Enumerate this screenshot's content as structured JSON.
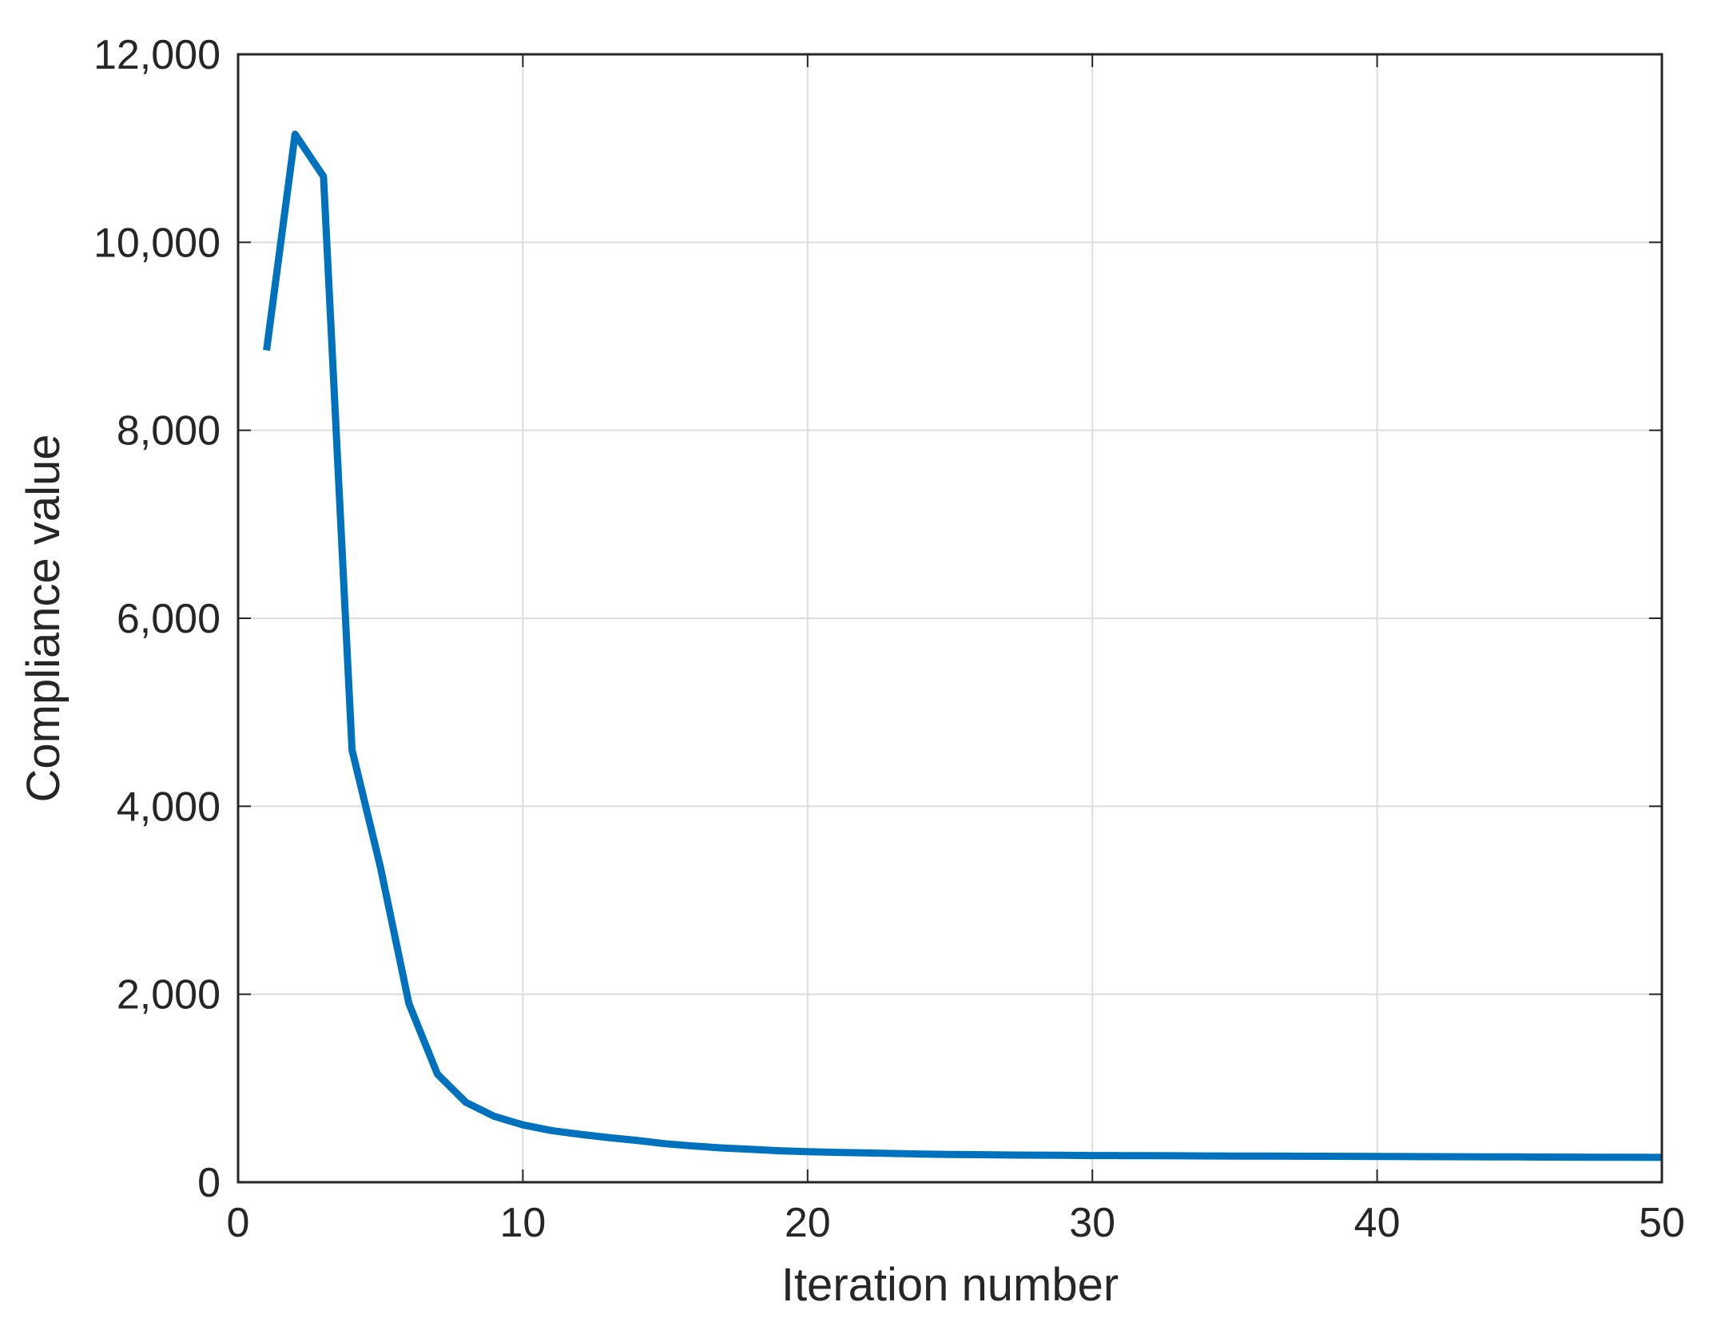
{
  "chart_data": {
    "type": "line",
    "title": "",
    "xlabel": "Iteration number",
    "ylabel": "Compliance value",
    "xlim": [
      0,
      50
    ],
    "ylim": [
      0,
      12000
    ],
    "xticks": [
      0,
      10,
      20,
      30,
      40,
      50
    ],
    "xtick_labels": [
      "0",
      "10",
      "20",
      "30",
      "40",
      "50"
    ],
    "yticks": [
      0,
      2000,
      4000,
      6000,
      8000,
      10000,
      12000
    ],
    "ytick_labels": [
      "0",
      "2,000",
      "4,000",
      "6,000",
      "8,000",
      "10,000",
      "12,000"
    ],
    "grid": true,
    "legend": "none",
    "series": [
      {
        "color": "#0072bd",
        "x": [
          1,
          2,
          3,
          4,
          5,
          6,
          7,
          8,
          9,
          10,
          11,
          12,
          13,
          14,
          15,
          16,
          17,
          18,
          19,
          20,
          21,
          22,
          23,
          24,
          25,
          26,
          27,
          28,
          29,
          30,
          31,
          32,
          33,
          34,
          35,
          36,
          37,
          38,
          39,
          40,
          41,
          42,
          43,
          44,
          45,
          46,
          47,
          48,
          49,
          50
        ],
        "y": [
          8850,
          11150,
          10700,
          4600,
          3350,
          1900,
          1150,
          850,
          700,
          610,
          550,
          510,
          475,
          445,
          410,
          385,
          365,
          350,
          335,
          325,
          318,
          312,
          306,
          300,
          296,
          293,
          290,
          288,
          286,
          284,
          283,
          282,
          281,
          280,
          279,
          278,
          277,
          276,
          275,
          274,
          273,
          272,
          271,
          270,
          269,
          268,
          267,
          266,
          265,
          264
        ]
      }
    ]
  }
}
